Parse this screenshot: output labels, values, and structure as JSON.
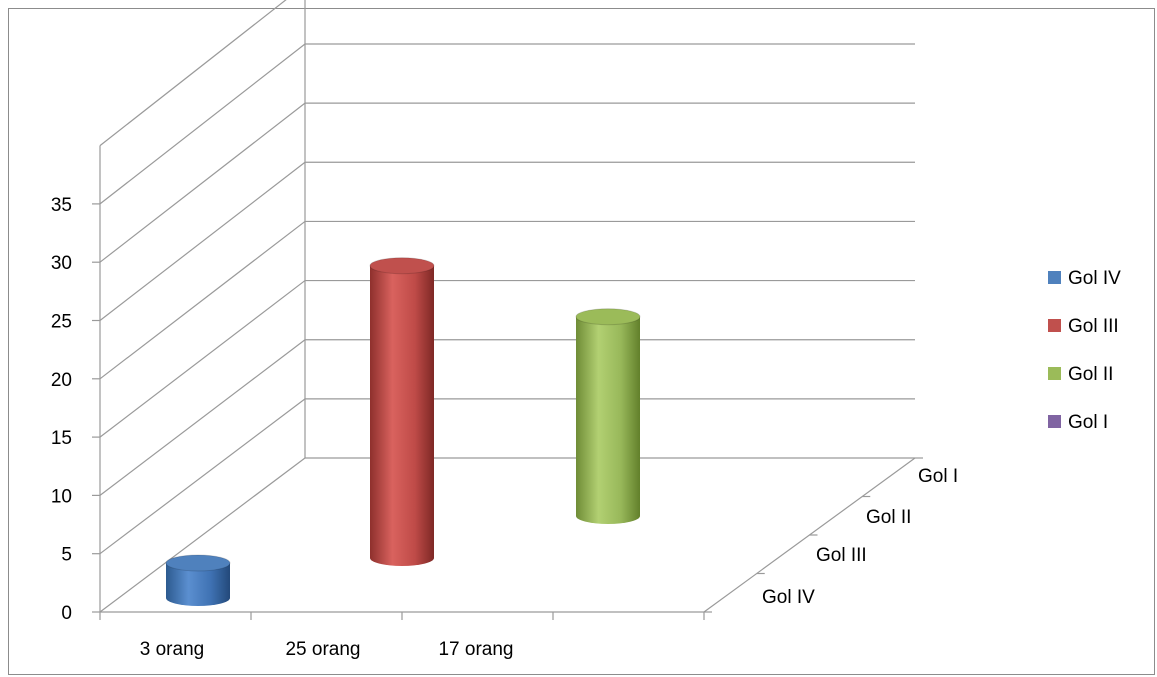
{
  "chart_data": {
    "type": "bar",
    "subtype": "3d-cylinder",
    "title": "",
    "xlabel": "",
    "ylabel": "",
    "ylim": [
      0,
      35
    ],
    "ytick_step": 5,
    "yticks": [
      "0",
      "5",
      "10",
      "15",
      "20",
      "25",
      "30",
      "35"
    ],
    "categories": [
      "3 orang",
      "25 orang",
      "17 orang",
      ""
    ],
    "depth_categories": [
      "Gol IV",
      "Gol III",
      "Gol II",
      "Gol I"
    ],
    "series": [
      {
        "name": "Gol IV",
        "color": "#4f81bd",
        "values": [
          3,
          null,
          null,
          null
        ]
      },
      {
        "name": "Gol III",
        "color": "#c0504d",
        "values": [
          null,
          25,
          null,
          null
        ]
      },
      {
        "name": "Gol II",
        "color": "#9bbb59",
        "values": [
          null,
          null,
          17,
          null
        ]
      },
      {
        "name": "Gol I",
        "color": "#8064a2",
        "values": [
          null,
          null,
          null,
          null
        ]
      }
    ],
    "grid": true,
    "legend_position": "right"
  }
}
